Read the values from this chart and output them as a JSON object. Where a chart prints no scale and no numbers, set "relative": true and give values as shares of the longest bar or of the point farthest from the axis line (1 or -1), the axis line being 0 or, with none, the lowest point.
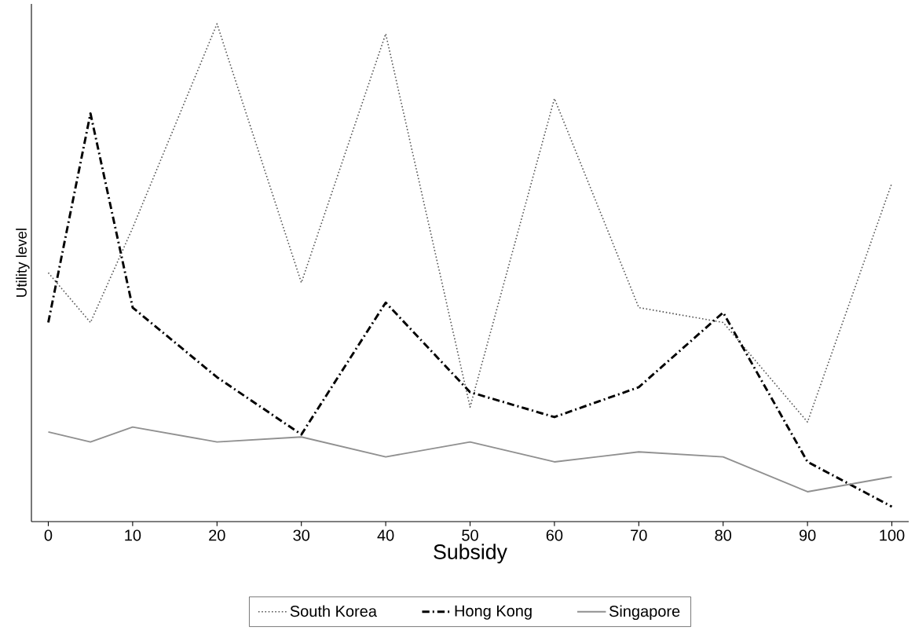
{
  "chart_data": {
    "type": "line",
    "relative": true,
    "xlabel": "Subsidy",
    "ylabel": "Utility level",
    "x": [
      0,
      5,
      10,
      20,
      30,
      40,
      50,
      60,
      70,
      80,
      90,
      100
    ],
    "xlim": [
      -2,
      102
    ],
    "xticks": [
      0,
      10,
      20,
      30,
      40,
      50,
      60,
      70,
      80,
      90,
      100
    ],
    "legend": "bottom",
    "grid": false,
    "marker": "none",
    "series": [
      {
        "name": "South Korea",
        "color": "#555555",
        "line_style": "dotted",
        "values": [
          0.5,
          0.4,
          0.59,
          1.0,
          0.48,
          0.98,
          0.23,
          0.85,
          0.43,
          0.4,
          0.2,
          0.68
        ]
      },
      {
        "name": "Hong Kong",
        "color": "#000000",
        "line_style": "dashdot",
        "values": [
          0.4,
          0.82,
          0.43,
          0.29,
          0.175,
          0.44,
          0.26,
          0.21,
          0.27,
          0.42,
          0.12,
          0.03
        ]
      },
      {
        "name": "Singapore",
        "color": "#909090",
        "line_style": "solid",
        "values": [
          0.18,
          0.16,
          0.19,
          0.16,
          0.17,
          0.13,
          0.16,
          0.12,
          0.14,
          0.13,
          0.06,
          0.09
        ]
      }
    ]
  }
}
